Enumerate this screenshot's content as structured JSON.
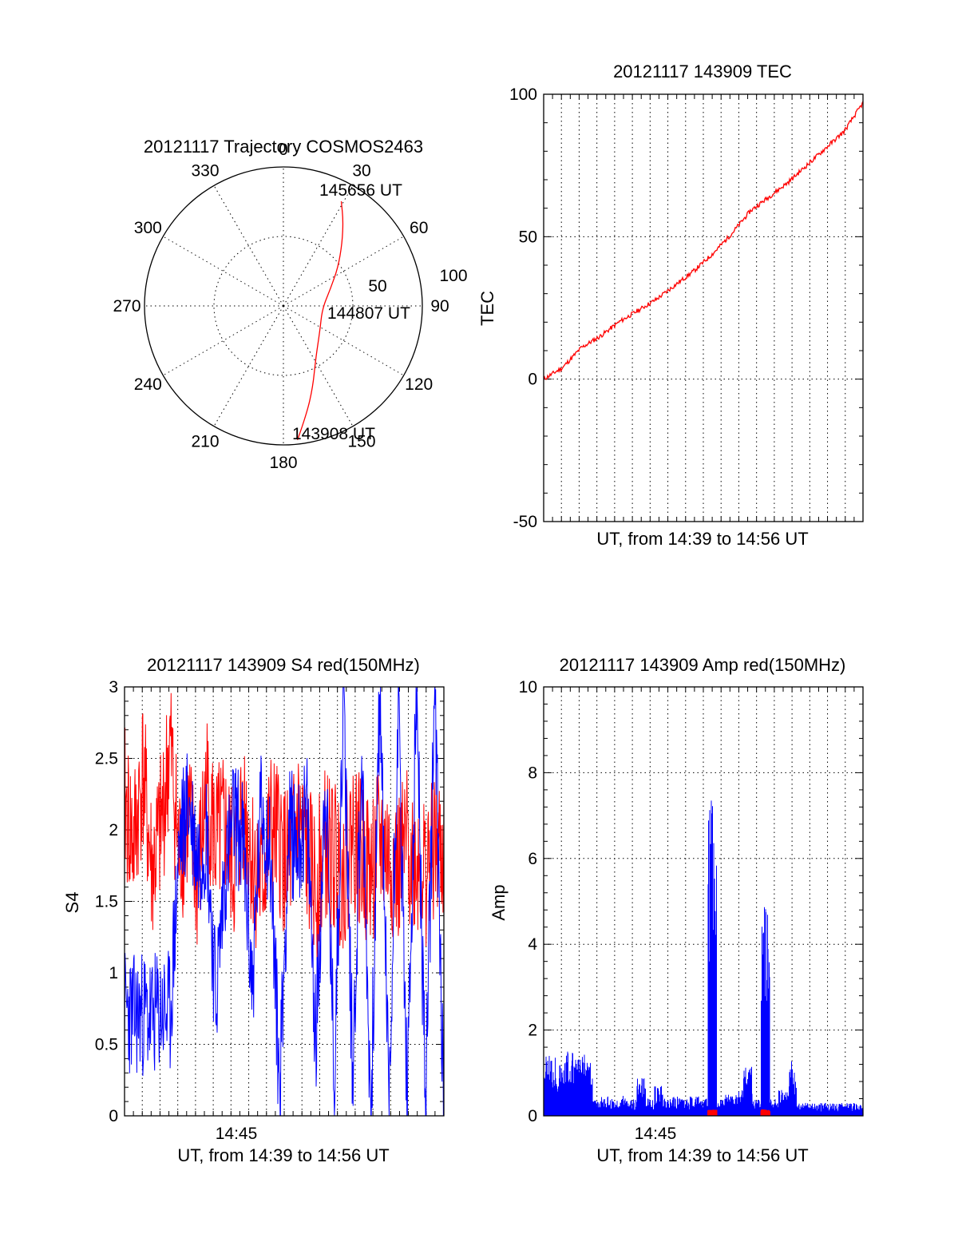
{
  "colors": {
    "red": "#ff0000",
    "blue": "#0000ff",
    "black": "#000000",
    "background": "#ffffff"
  },
  "chart_data": [
    {
      "type": "polar",
      "title": "20121117 Trajectory COSMOS2463",
      "azimuth_labels": [
        "0",
        "30",
        "60",
        "90",
        "120",
        "150",
        "180",
        "210",
        "240",
        "270",
        "300",
        "330"
      ],
      "radial_labels": [
        "50",
        "100"
      ],
      "radial_circles": [
        50,
        100
      ],
      "grid": true,
      "trajectory": {
        "color": "#ff0000",
        "points": [
          {
            "az": 174,
            "r": 97
          },
          {
            "az": 168,
            "r": 80
          },
          {
            "az": 160,
            "r": 62
          },
          {
            "az": 148,
            "r": 44
          },
          {
            "az": 125,
            "r": 32
          },
          {
            "az": 95,
            "r": 28
          },
          {
            "az": 70,
            "r": 36
          },
          {
            "az": 55,
            "r": 48
          },
          {
            "az": 43,
            "r": 62
          },
          {
            "az": 35,
            "r": 75
          },
          {
            "az": 29,
            "r": 86
          }
        ]
      },
      "annotations": [
        "145656 UT",
        "144807 UT",
        "143908 UT"
      ]
    },
    {
      "type": "line",
      "title": "20121117 143909 TEC",
      "xlabel": "UT, from 14:39 to 14:56 UT",
      "ylabel": "TEC",
      "xlim": [
        "14:39:09",
        "14:56:56"
      ],
      "ylim": [
        -50,
        100
      ],
      "yticks": [
        "-50",
        "0",
        "50",
        "100"
      ],
      "grid": true,
      "series": [
        {
          "color": "#ff0000",
          "x": [
            "14:39:09",
            "14:40:00",
            "14:41:00",
            "14:42:00",
            "14:43:00",
            "14:44:00",
            "14:45:00",
            "14:46:00",
            "14:47:00",
            "14:48:00",
            "14:49:00",
            "14:50:00",
            "14:51:00",
            "14:52:00",
            "14:53:00",
            "14:54:00",
            "14:55:00",
            "14:56:56"
          ],
          "values": [
            0,
            4,
            11,
            15,
            20,
            24,
            28,
            33,
            38,
            44,
            51,
            59,
            64,
            69,
            75,
            81,
            87,
            97
          ]
        }
      ]
    },
    {
      "type": "line",
      "title": "20121117 143909 S4 red(150MHz)",
      "xlabel": "UT, from 14:39 to 14:56 UT",
      "ylabel": "S4",
      "xlim": [
        "14:39:09",
        "14:56:56"
      ],
      "ylim": [
        0,
        3
      ],
      "yticks": [
        "0",
        "0.5",
        "1",
        "1.5",
        "2",
        "2.5",
        "3"
      ],
      "xticks": [
        "14:45"
      ],
      "grid": true,
      "series": [
        {
          "color": "#ff0000",
          "note_x": "14:39 to 14:56",
          "values": [
            2.2,
            1.9,
            2.4,
            1.7,
            2.0,
            2.6,
            1.8,
            2.1,
            1.6,
            2.3,
            1.9,
            2.0,
            1.7,
            2.2,
            1.8,
            1.6,
            2.0,
            1.9,
            1.7,
            2.1,
            1.8,
            1.6,
            1.9,
            1.8,
            1.7,
            2.0,
            1.8,
            1.7,
            1.9,
            1.8,
            1.7,
            1.9,
            1.8,
            1.7,
            1.9,
            1.8
          ]
        },
        {
          "color": "#0000ff",
          "values": [
            0.75,
            0.7,
            0.72,
            0.68,
            0.74,
            0.7,
            1.9,
            2.2,
            1.8,
            2.0,
            0.8,
            1.7,
            2.1,
            1.9,
            0.9,
            2.2,
            1.8,
            0.2,
            2.0,
            1.9,
            2.1,
            0.5,
            2.4,
            0.25,
            3.0,
            0.3,
            2.5,
            0.0,
            3.0,
            0.0,
            3.0,
            0.0,
            3.0,
            0.0,
            3.0,
            0.0
          ]
        }
      ]
    },
    {
      "type": "line",
      "title": "20121117 143909 Amp red(150MHz)",
      "xlabel": "UT, from 14:39 to 14:56 UT",
      "ylabel": "Amp",
      "xlim": [
        "14:39:09",
        "14:56:56"
      ],
      "ylim": [
        0,
        10
      ],
      "yticks": [
        "0",
        "2",
        "4",
        "6",
        "8",
        "10"
      ],
      "xticks": [
        "14:45"
      ],
      "grid": true,
      "series": [
        {
          "color": "#0000ff",
          "values": [
            1.4,
            1.5,
            1.3,
            1.6,
            1.4,
            1.5,
            0.4,
            0.45,
            0.4,
            0.5,
            0.4,
            0.9,
            0.4,
            0.7,
            0.4,
            0.45,
            0.4,
            0.5,
            0.4,
            7.7,
            0.4,
            0.5,
            0.6,
            1.2,
            0.4,
            4.9,
            0.4,
            0.6,
            1.3,
            0.3,
            0.3,
            0.3,
            0.3,
            0.3,
            0.3,
            0.3,
            0.3
          ]
        },
        {
          "color": "#ff0000",
          "values": [
            0,
            0,
            0,
            0,
            0,
            0,
            0,
            0,
            0,
            0,
            0,
            0,
            0,
            0,
            0,
            0,
            0,
            0,
            0,
            0.15,
            0,
            0,
            0,
            0,
            0,
            0.15,
            0,
            0,
            0,
            0,
            0,
            0,
            0,
            0,
            0,
            0,
            0
          ]
        }
      ]
    }
  ]
}
